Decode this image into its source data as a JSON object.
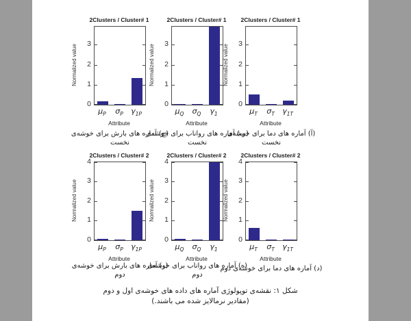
{
  "colors": {
    "surround": "#9b9b9b",
    "page": "#ffffff",
    "bar": "#2e2a8c"
  },
  "chart_data": [
    {
      "type": "bar",
      "title": "2Clusters / Cluster# 1",
      "ylabel": "Normalized value",
      "xlabel": "Attribute",
      "categories": [
        {
          "sym": "μ",
          "sub": "P"
        },
        {
          "sym": "σ",
          "sub": "P"
        },
        {
          "sym": "γ",
          "sub": "1P"
        }
      ],
      "values": [
        0.18,
        0.04,
        1.35
      ],
      "ylim": [
        0,
        3.9
      ],
      "yticks": [
        0,
        1,
        2,
        3
      ]
    },
    {
      "type": "bar",
      "title": "2Clusters / Cluster# 1",
      "ylabel": "Normalized value",
      "xlabel": "Attribute",
      "categories": [
        {
          "sym": "μ",
          "sub": "Q"
        },
        {
          "sym": "σ",
          "sub": "Q"
        },
        {
          "sym": "γ",
          "sub": "1"
        }
      ],
      "values": [
        0.04,
        0.01,
        3.9
      ],
      "ylim": [
        0,
        3.9
      ],
      "yticks": [
        0,
        1,
        2,
        3
      ]
    },
    {
      "type": "bar",
      "title": "2Clusters / Cluster# 1",
      "ylabel": "Normalized value",
      "xlabel": "Attribute",
      "categories": [
        {
          "sym": "μ",
          "sub": "T"
        },
        {
          "sym": "σ",
          "sub": "T"
        },
        {
          "sym": "γ",
          "sub": "1T"
        }
      ],
      "values": [
        0.5,
        0.03,
        0.2
      ],
      "ylim": [
        0,
        3.9
      ],
      "yticks": [
        0,
        1,
        2,
        3
      ]
    },
    {
      "type": "bar",
      "title": "2Clusters / Cluster# 2",
      "ylabel": "Normalized value",
      "xlabel": "Attribute",
      "categories": [
        {
          "sym": "μ",
          "sub": "P"
        },
        {
          "sym": "σ",
          "sub": "P"
        },
        {
          "sym": "γ",
          "sub": "1P"
        }
      ],
      "values": [
        0.08,
        0.02,
        1.5
      ],
      "ylim": [
        0,
        4
      ],
      "yticks": [
        0,
        1,
        2,
        3,
        4
      ]
    },
    {
      "type": "bar",
      "title": "2Clusters / Cluster# 2",
      "ylabel": "Normalized value",
      "xlabel": "Attribute",
      "categories": [
        {
          "sym": "μ",
          "sub": "Q"
        },
        {
          "sym": "σ",
          "sub": "Q"
        },
        {
          "sym": "γ",
          "sub": "1"
        }
      ],
      "values": [
        0.07,
        0.01,
        4.2
      ],
      "ylim": [
        0,
        4
      ],
      "yticks": [
        0,
        1,
        2,
        3,
        4
      ]
    },
    {
      "type": "bar",
      "title": "2Clusters / Cluster# 2",
      "ylabel": "Normalized value",
      "xlabel": "Attribute",
      "categories": [
        {
          "sym": "μ",
          "sub": "T"
        },
        {
          "sym": "σ",
          "sub": "T"
        },
        {
          "sym": "γ",
          "sub": "1T"
        }
      ],
      "values": [
        0.62,
        0.04,
        0.02
      ],
      "ylim": [
        0,
        4
      ],
      "yticks": [
        0,
        1,
        2,
        3,
        4
      ]
    }
  ],
  "captions": {
    "top": [
      "(ج) آماره های بارش برای خوشه‌ی نخست",
      "(ب) آماره های رواناب برای خوشه‌ی نخست",
      "(آ) آماره های دما برای خوشه‌ی نخست"
    ],
    "bottom": [
      "(و) آماره های بارش برای خوشه‌ی دوم",
      "(ه) آماره های رواناب برای خوشه‌ی دوم",
      "(د) آماره های دما برای خوشه‌ی دوم"
    ]
  },
  "figure_caption": {
    "line1": "شکل ۱: نقشه‌ی توپولوژی آماره های داده های خوشه‌ی اول و دوم",
    "line2": "(مقادیر نرمالایز شده می باشند.)"
  }
}
